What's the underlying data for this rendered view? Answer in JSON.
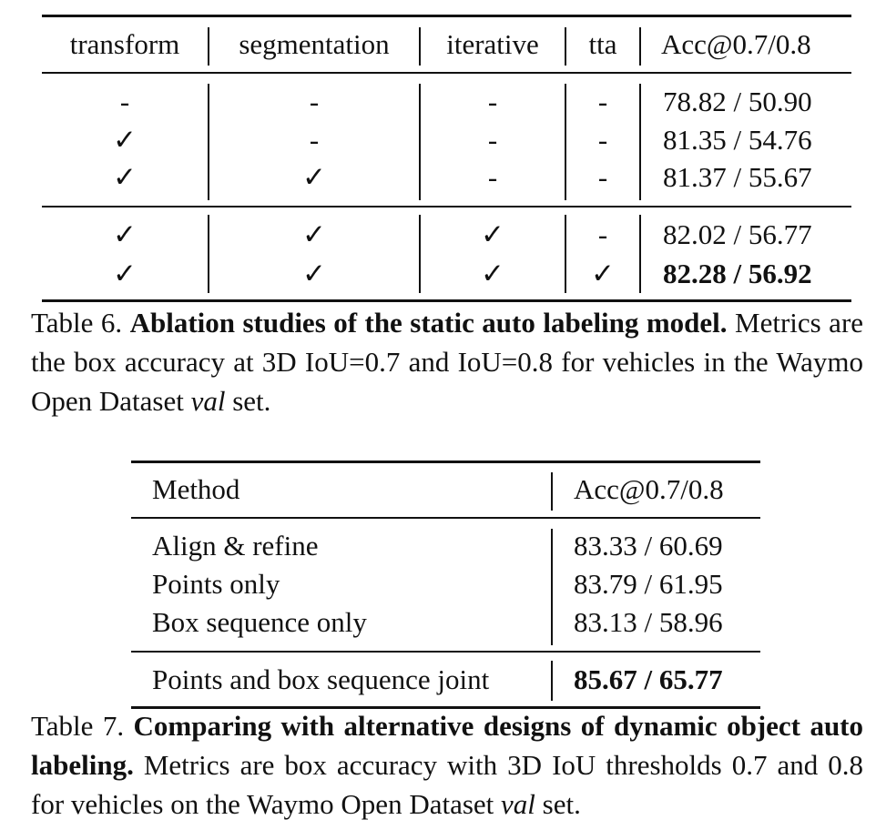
{
  "table6": {
    "headers": [
      "transform",
      "segmentation",
      "iterative",
      "tta",
      "Acc@0.7/0.8"
    ],
    "rows": [
      [
        "-",
        "-",
        "-",
        "-",
        "78.82 / 50.90"
      ],
      [
        "✓",
        "-",
        "-",
        "-",
        "81.35 / 54.76"
      ],
      [
        "✓",
        "✓",
        "-",
        "-",
        "81.37 / 55.67"
      ],
      [
        "✓",
        "✓",
        "✓",
        "-",
        "82.02 / 56.77"
      ],
      [
        "✓",
        "✓",
        "✓",
        "✓",
        "82.28 / 56.92"
      ]
    ],
    "caption": {
      "label": "Table 6.",
      "title": "Ablation studies of the static auto labeling model.",
      "body_1": "Metrics are the box accuracy at 3D IoU=0.7 and IoU=0.8 for vehicles in the Waymo Open Dataset",
      "body_italic": "val",
      "body_2": "set."
    }
  },
  "table7": {
    "headers": [
      "Method",
      "Acc@0.7/0.8"
    ],
    "rows": [
      [
        "Align & refine",
        "83.33 / 60.69"
      ],
      [
        "Points only",
        "83.79 / 61.95"
      ],
      [
        "Box sequence only",
        "83.13 / 58.96"
      ],
      [
        "Points and box sequence joint",
        "85.67 / 65.77"
      ]
    ],
    "caption": {
      "label": "Table 7.",
      "title": "Comparing with alternative designs of dynamic object auto labeling.",
      "body_1": "Metrics are box accuracy with 3D IoU thresholds 0.7 and 0.8 for vehicles on the Waymo Open Dataset",
      "body_italic": "val",
      "body_2": "set."
    }
  }
}
